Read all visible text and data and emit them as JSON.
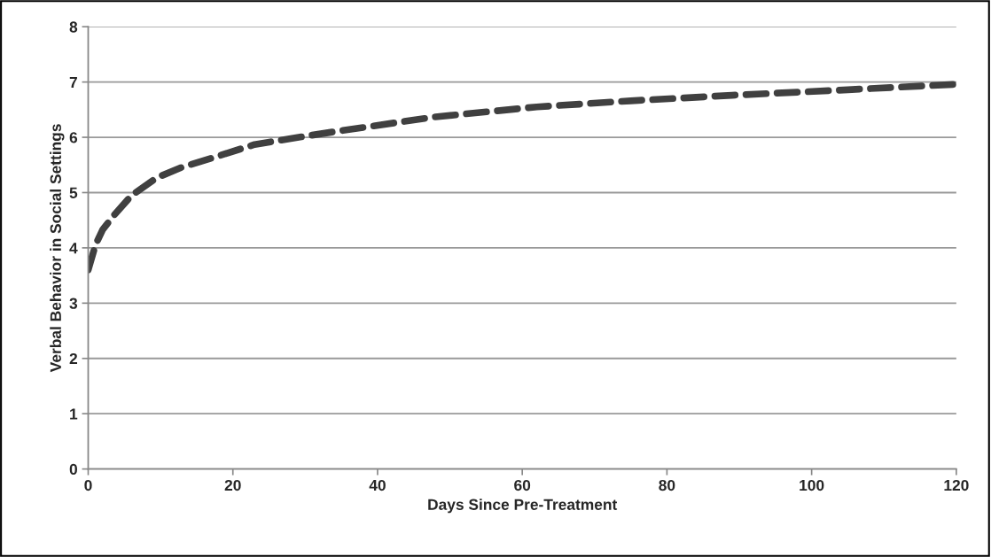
{
  "chart_data": {
    "type": "line",
    "xlabel": "Days Since Pre-Treatment",
    "ylabel": "Verbal Behavior in Social Settings",
    "x": [
      0,
      1,
      2,
      3.5,
      6,
      9.5,
      13,
      17,
      23,
      30,
      35,
      48,
      62,
      75,
      89,
      105,
      120
    ],
    "series": [
      {
        "color": "#404040",
        "values": [
          3.6,
          4.05,
          4.33,
          4.58,
          4.95,
          5.27,
          5.46,
          5.62,
          5.87,
          6.02,
          6.12,
          6.37,
          6.55,
          6.66,
          6.76,
          6.86,
          6.96
        ]
      }
    ],
    "xlim": [
      0,
      120
    ],
    "xticks": [
      0,
      20,
      40,
      60,
      80,
      100,
      120
    ],
    "ylim": [
      0,
      8
    ],
    "yticks": [
      0,
      1,
      2,
      3,
      4,
      5,
      6,
      7,
      8
    ],
    "grid": "y",
    "marker": "none",
    "line_style": "dashed"
  }
}
